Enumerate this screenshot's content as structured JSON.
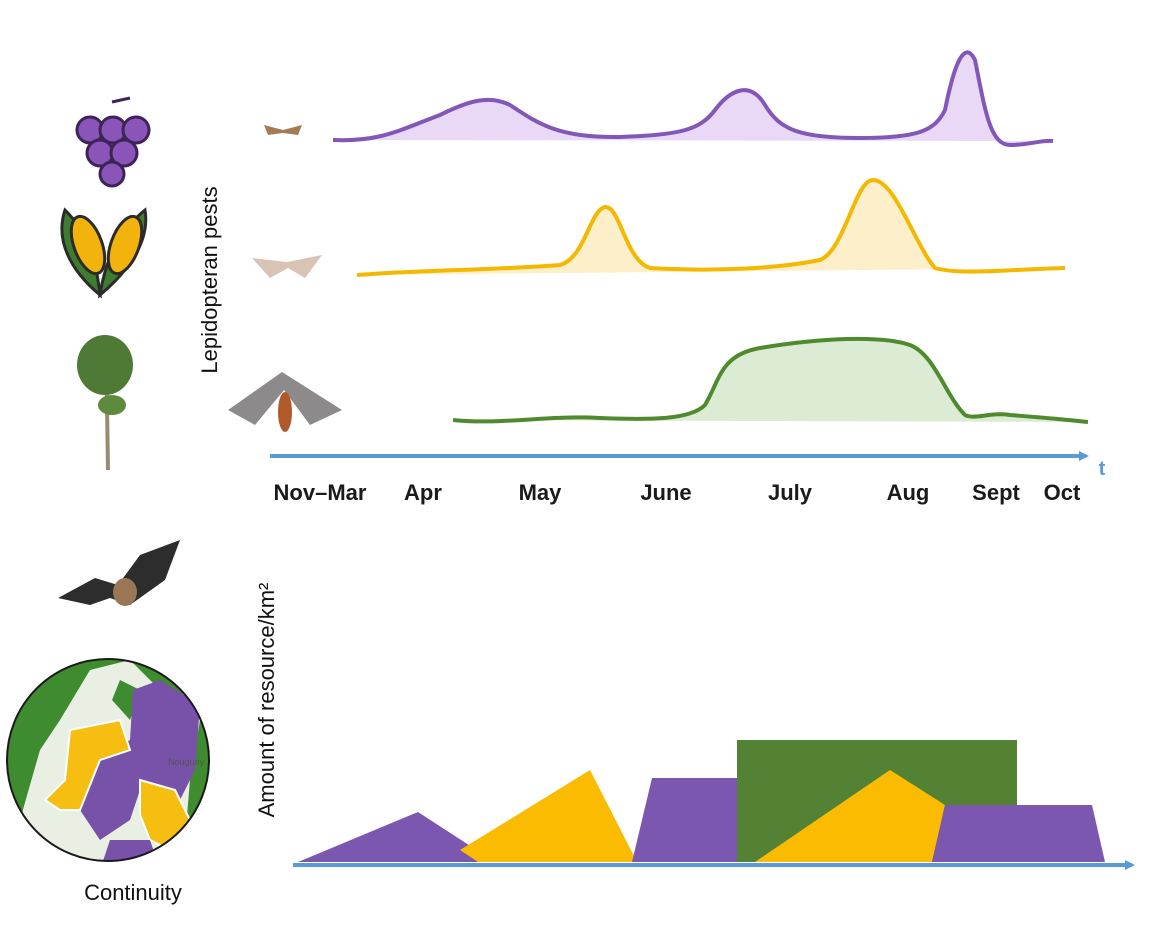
{
  "pest_axis_label": "Lepidopteran pests",
  "timeline": {
    "months": [
      "Nov–Mar",
      "Apr",
      "May",
      "June",
      "July",
      "Aug",
      "Sept",
      "Oct"
    ],
    "axis_label": "t"
  },
  "resource_axis_label": "Amount of resource/km²",
  "landscape": {
    "label": "Continuity",
    "map_labels": [
      "Nouguey"
    ]
  }
}
